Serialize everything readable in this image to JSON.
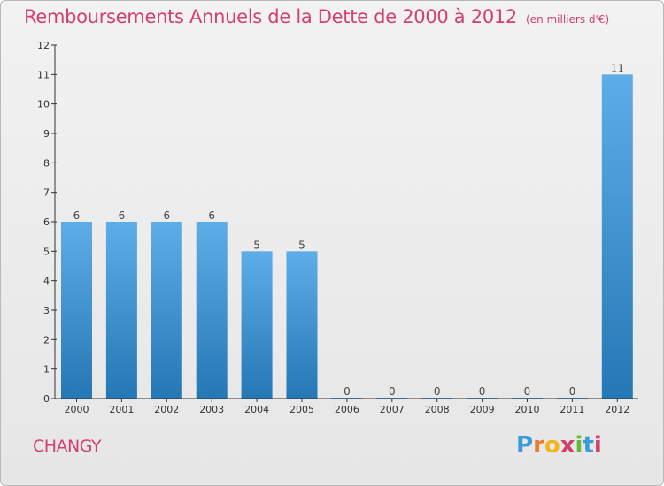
{
  "header": {
    "title": "Remboursements Annuels de la Dette de 2000 à 2012",
    "unit": "(en milliers d'€)"
  },
  "footer": {
    "commune": "CHANGY",
    "logo_letters": [
      "P",
      "r",
      "o",
      "x",
      "i",
      "t",
      "i"
    ],
    "logo_colors": [
      "#3b9ad9",
      "#e87a2c",
      "#f2b51c",
      "#d43f6b",
      "#6ab83c",
      "#3b9ad9",
      "#d43f6b"
    ]
  },
  "colors": {
    "bar_top": "#5dade8",
    "bar_bottom": "#2577b5",
    "title": "#d43f6b",
    "axis": "#333333"
  },
  "chart_data": {
    "type": "bar",
    "categories": [
      "2000",
      "2001",
      "2002",
      "2003",
      "2004",
      "2005",
      "2006",
      "2007",
      "2008",
      "2009",
      "2010",
      "2011",
      "2012"
    ],
    "values": [
      6,
      6,
      6,
      6,
      5,
      5,
      0,
      0,
      0,
      0,
      0,
      0,
      11
    ],
    "value_labels": [
      "6",
      "6",
      "6",
      "6",
      "5",
      "5",
      "0",
      "0",
      "0",
      "0",
      "0",
      "0",
      "11"
    ],
    "y_ticks": [
      0,
      1,
      2,
      3,
      4,
      5,
      6,
      7,
      8,
      9,
      10,
      11,
      12
    ],
    "ylim": [
      0,
      12
    ],
    "grid": false,
    "legend": "none"
  }
}
